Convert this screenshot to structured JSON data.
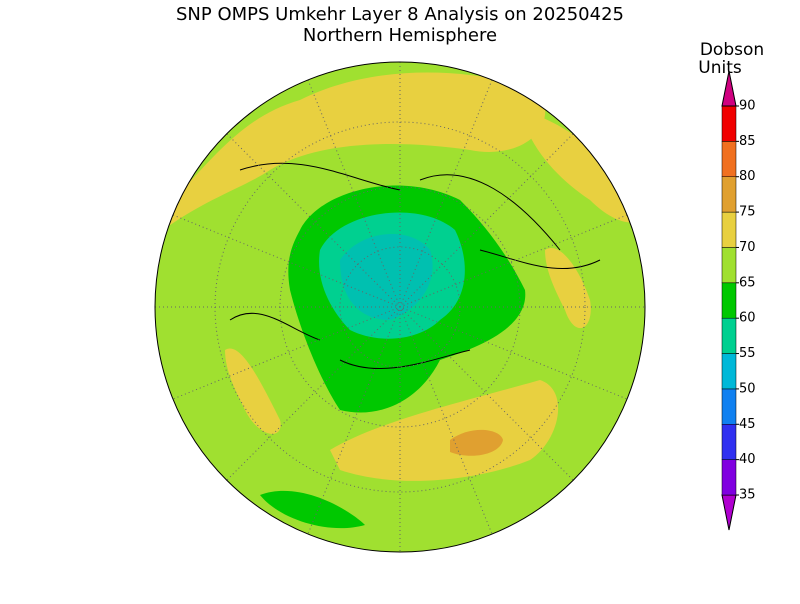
{
  "title": "SNP OMPS Umkehr Layer 8 Analysis on 20250425",
  "subtitle": "Northern Hemisphere",
  "colorbar": {
    "label": [
      "Dobson",
      "Units"
    ],
    "ticks": [
      35,
      40,
      45,
      50,
      55,
      60,
      65,
      70,
      75,
      80,
      85,
      90
    ],
    "colors": [
      "#b000d0",
      "#8000e0",
      "#3030f0",
      "#1080f0",
      "#00b8d8",
      "#00d090",
      "#00c800",
      "#a0e030",
      "#e8d040",
      "#e0a030",
      "#f07020",
      "#f00000",
      "#d00080"
    ]
  }
}
